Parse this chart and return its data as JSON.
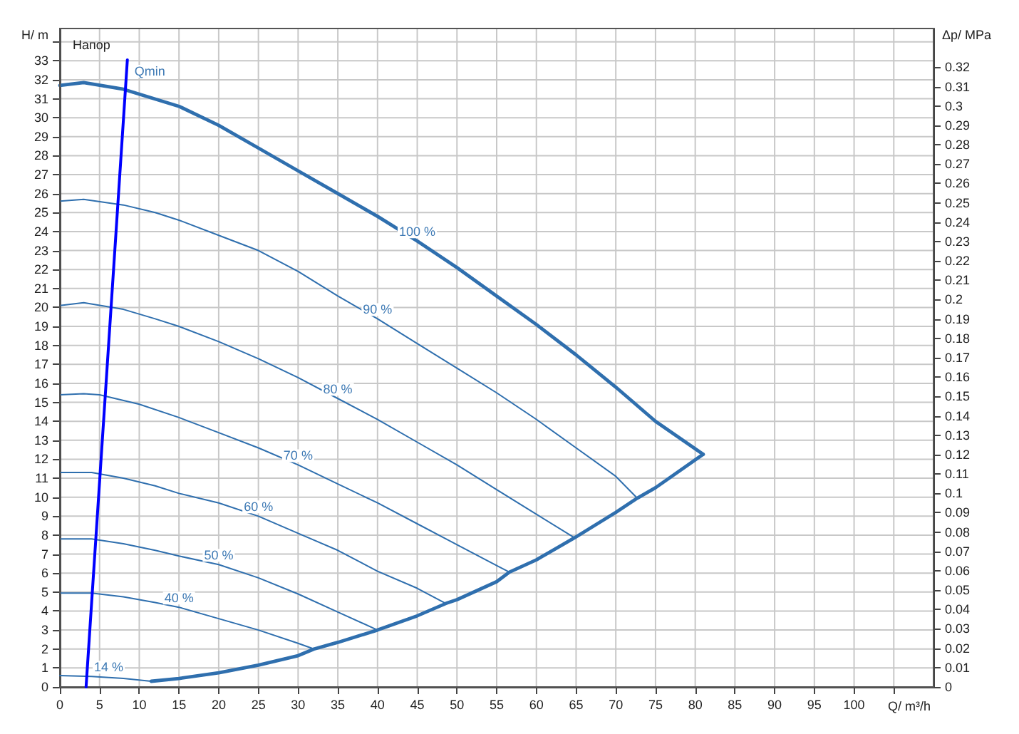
{
  "chart_data": {
    "type": "line",
    "title": "Напор",
    "xlabel": "Q/ m³/h",
    "ylabel": "H/ m",
    "y2label": "Δp/ MPa",
    "xlim": [
      0,
      110
    ],
    "xticks": [
      0,
      5,
      10,
      15,
      20,
      25,
      30,
      35,
      40,
      45,
      50,
      55,
      60,
      65,
      70,
      75,
      80,
      85,
      90,
      95,
      100,
      {
        "value": 105,
        "label": null
      }
    ],
    "ylim": [
      0,
      34.7
    ],
    "yticks": [
      0,
      1,
      2,
      3,
      4,
      5,
      6,
      7,
      8,
      9,
      10,
      11,
      12,
      13,
      14,
      15,
      16,
      17,
      18,
      19,
      20,
      21,
      22,
      23,
      24,
      25,
      26,
      27,
      28,
      29,
      30,
      31,
      32,
      33,
      {
        "value": 34,
        "label": null
      }
    ],
    "y2lim": [
      0,
      0.34
    ],
    "y2ticks": [
      0,
      0.01,
      0.02,
      0.03,
      0.04,
      0.05,
      0.06,
      0.07,
      0.08,
      0.09,
      0.1,
      0.11,
      0.12,
      0.13,
      0.14,
      0.15,
      0.16,
      0.17,
      0.18,
      0.19,
      0.2,
      0.21,
      0.22,
      0.23,
      0.24,
      0.25,
      0.26,
      0.27,
      0.28,
      0.29,
      0.3,
      0.31,
      0.32
    ],
    "grid": true,
    "legend": false,
    "marker": "none",
    "line_style": "solid",
    "series": [
      {
        "name": "100 %",
        "color": "#2f6fae",
        "x": [
          0,
          3,
          8,
          15,
          20,
          25,
          30,
          35,
          40,
          45,
          50,
          55,
          60,
          65,
          70,
          75,
          81
        ],
        "values": [
          31.7,
          31.85,
          31.5,
          30.6,
          29.6,
          28.4,
          27.2,
          26.0,
          24.8,
          23.5,
          22.1,
          20.6,
          19.1,
          17.5,
          15.8,
          14.0,
          12.26
        ]
      },
      {
        "name": "90 %",
        "color": "#2f6fae",
        "x": [
          0,
          3,
          8,
          12,
          15,
          20,
          25,
          30,
          35,
          40,
          45,
          50,
          55,
          60,
          65,
          70,
          72.7
        ],
        "values": [
          25.6,
          25.7,
          25.4,
          25.0,
          24.6,
          23.8,
          23.0,
          21.9,
          20.6,
          19.4,
          18.1,
          16.8,
          15.5,
          14.1,
          12.6,
          11.1,
          9.95
        ]
      },
      {
        "name": "80 %",
        "color": "#2f6fae",
        "x": [
          0,
          3,
          8,
          12,
          15,
          20,
          25,
          30,
          35,
          40,
          45,
          50,
          55,
          60,
          64.8
        ],
        "values": [
          20.1,
          20.25,
          19.9,
          19.4,
          19.0,
          18.2,
          17.3,
          16.3,
          15.2,
          14.1,
          12.9,
          11.7,
          10.4,
          9.1,
          7.86
        ]
      },
      {
        "name": "70 %",
        "color": "#2f6fae",
        "x": [
          0,
          3,
          5,
          10,
          15,
          20,
          25,
          30,
          35,
          40,
          45,
          50,
          55,
          56.6
        ],
        "values": [
          15.4,
          15.45,
          15.4,
          14.9,
          14.2,
          13.4,
          12.6,
          11.7,
          10.7,
          9.7,
          8.6,
          7.5,
          6.4,
          6.05
        ]
      },
      {
        "name": "60 %",
        "color": "#2f6fae",
        "x": [
          0,
          4,
          8,
          12,
          15,
          20,
          25,
          30,
          35,
          40,
          45,
          48.6
        ],
        "values": [
          11.3,
          11.3,
          11.0,
          10.6,
          10.2,
          9.7,
          9.0,
          8.1,
          7.2,
          6.1,
          5.2,
          4.4
        ]
      },
      {
        "name": "50 %",
        "color": "#2f6fae",
        "x": [
          0,
          4,
          8,
          12,
          15,
          20,
          25,
          30,
          35,
          40
        ],
        "values": [
          7.8,
          7.8,
          7.55,
          7.2,
          6.9,
          6.45,
          5.75,
          4.9,
          3.95,
          3.0
        ]
      },
      {
        "name": "40 %",
        "color": "#2f6fae",
        "x": [
          0,
          4,
          8,
          12,
          15,
          20,
          25,
          30,
          32
        ],
        "values": [
          4.95,
          4.95,
          4.75,
          4.45,
          4.2,
          3.6,
          3.0,
          2.3,
          2.0
        ]
      },
      {
        "name": "14 %",
        "color": "#2f6fae",
        "x": [
          0,
          4,
          8,
          11.5
        ],
        "values": [
          0.6,
          0.55,
          0.45,
          0.3
        ]
      },
      {
        "color": "#2f6fae",
        "x": [
          11.5,
          15,
          20,
          25,
          30,
          32,
          35,
          40,
          45,
          48.6,
          50,
          55,
          56.6,
          60,
          64.8,
          70,
          72.7,
          75,
          81
        ],
        "values": [
          0.3,
          0.45,
          0.75,
          1.15,
          1.65,
          2.0,
          2.35,
          3.0,
          3.75,
          4.4,
          4.6,
          5.55,
          6.05,
          6.7,
          7.86,
          9.2,
          9.95,
          10.5,
          12.26
        ]
      },
      {
        "name": "Qmin",
        "color": "#0000ff",
        "x": [
          3.3,
          8.5
        ],
        "values": [
          0,
          33.05
        ]
      }
    ]
  }
}
